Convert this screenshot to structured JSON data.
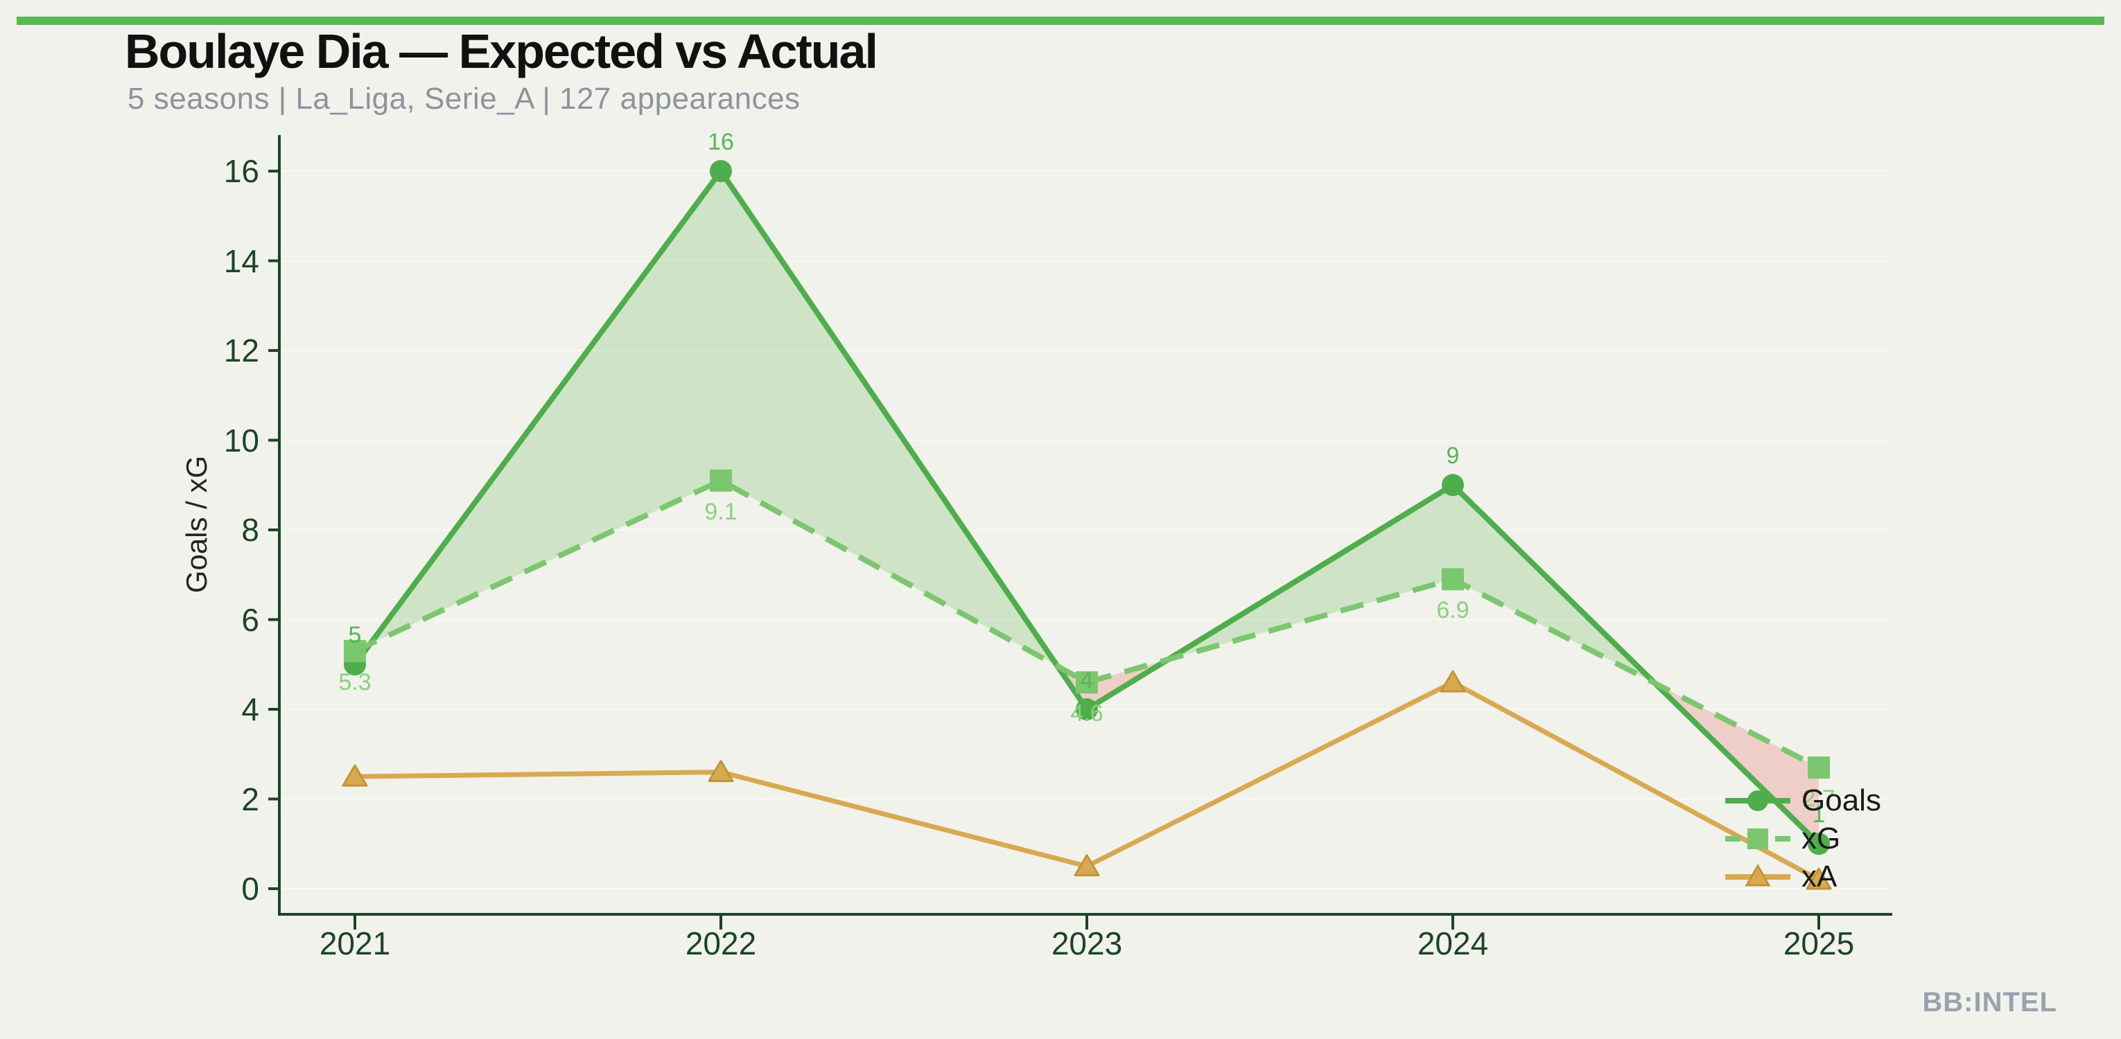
{
  "page": {
    "background": "#f2f2ec",
    "accent_bar_color": "#5bb751",
    "title": "Boulaye Dia — Expected vs Actual",
    "subtitle": "5 seasons | La_Liga, Serie_A | 127 appearances",
    "title_color": "#111111",
    "subtitle_color": "#8d939e",
    "watermark": "BB:INTEL",
    "watermark_color": "#9aa3ad"
  },
  "chart_data": {
    "type": "line",
    "title": "Boulaye Dia — Expected vs Actual",
    "subtitle": "5 seasons | La_Liga, Serie_A | 127 appearances",
    "xlabel": "",
    "ylabel": "Goals / xG",
    "x": [
      2021,
      2022,
      2023,
      2024,
      2025
    ],
    "xtick_labels": [
      "2021",
      "2022",
      "2023",
      "2024",
      "2025"
    ],
    "yticks": [
      0,
      2,
      4,
      6,
      8,
      10,
      12,
      14,
      16
    ],
    "xlim": [
      2020.8,
      2025.2
    ],
    "ylim": [
      -0.6,
      16.8
    ],
    "grid": "faint-horizontal",
    "grid_color": "#f8f8f2",
    "axis_color": "#1c4527",
    "series": [
      {
        "name": "Goals",
        "values": [
          5,
          16,
          4,
          9,
          1
        ],
        "point_labels": [
          "5",
          "16",
          "4",
          "9",
          "1"
        ],
        "color": "#4fae4c",
        "label_color": "#57b554",
        "line_style": "solid",
        "marker": "circle"
      },
      {
        "name": "xG",
        "values": [
          5.3,
          9.1,
          4.6,
          6.9,
          2.7
        ],
        "point_labels": [
          "5.3",
          "9.1",
          "4.6",
          "6.9",
          "2.7"
        ],
        "color": "#7bc76e",
        "label_color": "#8bd07d",
        "line_style": "dashed",
        "marker": "square"
      },
      {
        "name": "xA",
        "values": [
          2.5,
          2.6,
          0.5,
          4.6,
          0.2
        ],
        "point_labels": [],
        "color": "#d9a94f",
        "marker_edge_color": "#bf943a",
        "line_style": "solid",
        "marker": "triangle"
      }
    ],
    "compare_fill": {
      "between": [
        "Goals",
        "xG"
      ],
      "above_color": "rgba(120,195,105,0.28)",
      "below_color": "rgba(233,148,148,0.38)"
    },
    "legend_position": "lower-right-inside"
  }
}
